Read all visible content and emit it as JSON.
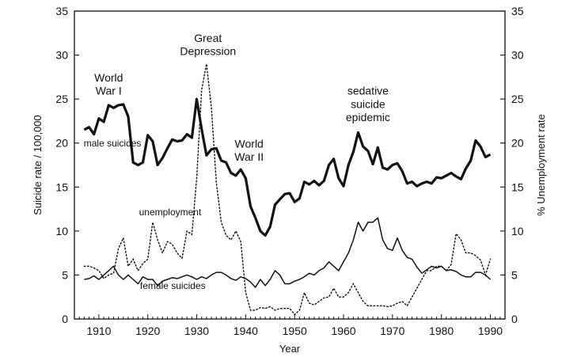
{
  "chart_data": {
    "type": "line",
    "xlabel": "Year",
    "ylabel_left": "Suicide rate / 100,000",
    "ylabel_right": "% Unemployment rate",
    "xlim": [
      1905,
      1993
    ],
    "ylim_left": [
      0,
      35
    ],
    "ylim_right": [
      0,
      35
    ],
    "x_ticks": [
      1910,
      1920,
      1930,
      1940,
      1950,
      1960,
      1970,
      1980,
      1990
    ],
    "y_ticks": [
      0,
      5,
      10,
      15,
      20,
      25,
      30,
      35
    ],
    "grid": false,
    "series": [
      {
        "name": "male suicides",
        "style": "thick-solid",
        "x": [
          1907,
          1908,
          1909,
          1910,
          1911,
          1912,
          1913,
          1914,
          1915,
          1916,
          1917,
          1918,
          1919,
          1920,
          1921,
          1922,
          1923,
          1924,
          1925,
          1926,
          1927,
          1928,
          1929,
          1930,
          1931,
          1932,
          1933,
          1934,
          1935,
          1936,
          1937,
          1938,
          1939,
          1940,
          1941,
          1942,
          1943,
          1944,
          1945,
          1946,
          1947,
          1948,
          1949,
          1950,
          1951,
          1952,
          1953,
          1954,
          1955,
          1956,
          1957,
          1958,
          1959,
          1960,
          1961,
          1962,
          1963,
          1964,
          1965,
          1966,
          1967,
          1968,
          1969,
          1970,
          1971,
          1972,
          1973,
          1974,
          1975,
          1976,
          1977,
          1978,
          1979,
          1980,
          1981,
          1982,
          1983,
          1984,
          1985,
          1986,
          1987,
          1988,
          1989,
          1990
        ],
        "y": [
          21.5,
          21.8,
          21.0,
          22.8,
          22.4,
          24.3,
          24.0,
          24.3,
          24.4,
          23.0,
          17.8,
          17.5,
          17.8,
          20.9,
          20.2,
          17.5,
          18.3,
          19.4,
          20.4,
          20.2,
          20.3,
          21.0,
          20.6,
          25.0,
          21.6,
          18.6,
          19.3,
          19.4,
          18.0,
          17.8,
          16.6,
          16.3,
          17.0,
          16.0,
          12.8,
          11.5,
          10.0,
          9.5,
          10.5,
          13.0,
          13.6,
          14.2,
          14.3,
          13.3,
          13.7,
          15.6,
          15.3,
          15.7,
          15.2,
          15.7,
          17.5,
          18.2,
          16.0,
          15.1,
          17.5,
          19.0,
          21.2,
          19.6,
          19.1,
          17.6,
          19.5,
          17.2,
          17.0,
          17.5,
          17.7,
          16.8,
          15.4,
          15.6,
          15.1,
          15.4,
          15.6,
          15.4,
          16.1,
          16.0,
          16.3,
          16.6,
          16.2,
          15.9,
          17.1,
          18.0,
          20.3,
          19.6,
          18.4,
          18.7
        ]
      },
      {
        "name": "unemployment",
        "style": "dotted",
        "x": [
          1907,
          1908,
          1909,
          1910,
          1911,
          1912,
          1913,
          1914,
          1915,
          1916,
          1917,
          1918,
          1919,
          1920,
          1921,
          1922,
          1923,
          1924,
          1925,
          1926,
          1927,
          1928,
          1929,
          1930,
          1931,
          1932,
          1933,
          1934,
          1935,
          1936,
          1937,
          1938,
          1939,
          1940,
          1941,
          1942,
          1943,
          1944,
          1945,
          1946,
          1947,
          1948,
          1949,
          1950,
          1951,
          1952,
          1953,
          1954,
          1955,
          1956,
          1957,
          1958,
          1959,
          1960,
          1961,
          1962,
          1963,
          1964,
          1965,
          1966,
          1967,
          1968,
          1969,
          1970,
          1971,
          1972,
          1973,
          1974,
          1975,
          1976,
          1977,
          1978,
          1979,
          1980,
          1981,
          1982,
          1983,
          1984,
          1985,
          1986,
          1987,
          1988,
          1989,
          1990
        ],
        "y": [
          6.0,
          6.0,
          5.8,
          5.5,
          4.6,
          5.0,
          5.2,
          8.0,
          9.2,
          6.0,
          6.8,
          5.5,
          6.3,
          6.8,
          11.0,
          9.0,
          7.5,
          8.8,
          8.5,
          7.5,
          6.9,
          10.0,
          9.6,
          16.0,
          26.0,
          29.0,
          24.0,
          15.5,
          11.0,
          9.5,
          9.0,
          10.0,
          8.8,
          3.0,
          1.0,
          1.0,
          1.3,
          1.2,
          1.4,
          1.0,
          1.2,
          1.2,
          1.2,
          0.5,
          1.0,
          3.0,
          1.8,
          1.6,
          2.0,
          2.4,
          2.5,
          3.5,
          2.5,
          2.5,
          3.0,
          4.0,
          3.0,
          2.0,
          1.5,
          1.5,
          1.5,
          1.5,
          1.4,
          1.5,
          1.8,
          2.0,
          1.5,
          2.5,
          3.5,
          4.5,
          5.5,
          5.5,
          6.0,
          6.0,
          5.5,
          6.2,
          9.7,
          9.0,
          7.5,
          7.5,
          7.2,
          6.7,
          5.0,
          6.8
        ]
      },
      {
        "name": "female suicides",
        "style": "solid",
        "x": [
          1907,
          1908,
          1909,
          1910,
          1911,
          1912,
          1913,
          1914,
          1915,
          1916,
          1917,
          1918,
          1919,
          1920,
          1921,
          1922,
          1923,
          1924,
          1925,
          1926,
          1927,
          1928,
          1929,
          1930,
          1931,
          1932,
          1933,
          1934,
          1935,
          1936,
          1937,
          1938,
          1939,
          1940,
          1941,
          1942,
          1943,
          1944,
          1945,
          1946,
          1947,
          1948,
          1949,
          1950,
          1951,
          1952,
          1953,
          1954,
          1955,
          1956,
          1957,
          1958,
          1959,
          1960,
          1961,
          1962,
          1963,
          1964,
          1965,
          1966,
          1967,
          1968,
          1969,
          1970,
          1971,
          1972,
          1973,
          1974,
          1975,
          1976,
          1977,
          1978,
          1979,
          1980,
          1981,
          1982,
          1983,
          1984,
          1985,
          1986,
          1987,
          1988,
          1989,
          1990
        ],
        "y": [
          4.5,
          4.6,
          4.9,
          4.5,
          5.0,
          5.5,
          6.0,
          5.0,
          4.5,
          5.0,
          4.5,
          4.0,
          4.8,
          4.5,
          4.5,
          3.8,
          4.3,
          4.5,
          4.7,
          4.6,
          4.8,
          5.0,
          4.8,
          4.5,
          4.8,
          4.6,
          5.0,
          5.3,
          5.3,
          5.0,
          4.6,
          4.4,
          4.8,
          4.6,
          4.2,
          3.6,
          4.5,
          3.8,
          4.5,
          5.5,
          5.0,
          4.0,
          4.0,
          4.3,
          4.5,
          4.8,
          5.2,
          5.0,
          5.5,
          5.8,
          6.5,
          6.0,
          5.5,
          6.5,
          7.5,
          9.0,
          11.0,
          10.0,
          11.0,
          11.0,
          11.5,
          9.0,
          8.0,
          7.8,
          9.2,
          7.8,
          7.0,
          6.8,
          5.9,
          5.2,
          5.6,
          6.0,
          5.8,
          6.0,
          5.5,
          5.6,
          5.4,
          5.0,
          4.8,
          4.8,
          5.3,
          5.3,
          5.0,
          4.5
        ]
      }
    ],
    "annotations": [
      {
        "text": "World",
        "x": 1912.0,
        "y": 27.0
      },
      {
        "text": "War I",
        "x": 1912.0,
        "y": 25.5
      },
      {
        "text": "Great",
        "x": 1932.3,
        "y": 31.5
      },
      {
        "text": "Depression",
        "x": 1932.3,
        "y": 30.0
      },
      {
        "text": "World",
        "x": 1940.7,
        "y": 19.5
      },
      {
        "text": "War II",
        "x": 1940.7,
        "y": 18.0
      },
      {
        "text": "sedative",
        "x": 1965.0,
        "y": 25.5
      },
      {
        "text": "suicide",
        "x": 1965.0,
        "y": 24.0
      },
      {
        "text": "epidemic",
        "x": 1965.0,
        "y": 22.5
      },
      {
        "text": "male suicides",
        "x": 1906.9,
        "y": 19.6
      },
      {
        "text": "unemployment",
        "x": 1918.2,
        "y": 11.8
      },
      {
        "text": "female suicides",
        "x": 1925.1,
        "y": 3.4
      }
    ]
  }
}
